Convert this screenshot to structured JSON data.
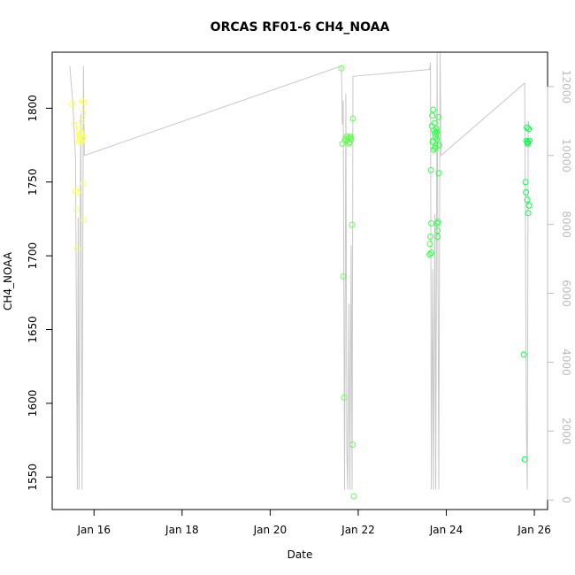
{
  "chart_data": {
    "type": "scatter",
    "title": "ORCAS RF01-6 CH4_NOAA",
    "xlabel": "Date",
    "ylabel": "CH4_NOAA",
    "x_ticks": [
      {
        "value": 16,
        "label": "Jan 16"
      },
      {
        "value": 18,
        "label": "Jan 18"
      },
      {
        "value": 20,
        "label": "Jan 20"
      },
      {
        "value": 22,
        "label": "Jan 22"
      },
      {
        "value": 24,
        "label": "Jan 24"
      },
      {
        "value": 26,
        "label": "Jan 26"
      }
    ],
    "xlim": [
      15.05,
      26.3
    ],
    "ylim": [
      1528,
      1838
    ],
    "y_ticks": [
      1550,
      1600,
      1650,
      1700,
      1750,
      1800
    ],
    "y2lim": [
      -280,
      13000
    ],
    "y2_ticks": [
      0,
      2000,
      4000,
      6000,
      8000,
      10000,
      12000
    ],
    "grid": false,
    "background_series": {
      "name": "",
      "color": "#c8c8c8",
      "points": [
        [
          15.45,
          12600
        ],
        [
          15.52,
          11500
        ],
        [
          15.58,
          9900
        ],
        [
          15.62,
          300
        ],
        [
          15.64,
          8200
        ],
        [
          15.66,
          300
        ],
        [
          15.68,
          7200
        ],
        [
          15.7,
          11200
        ],
        [
          15.73,
          300
        ],
        [
          15.76,
          12600
        ],
        [
          15.78,
          10000
        ],
        [
          21.62,
          12600
        ],
        [
          21.64,
          10900
        ],
        [
          21.66,
          11600
        ],
        [
          21.69,
          300
        ],
        [
          21.72,
          11800
        ],
        [
          21.74,
          1500
        ],
        [
          21.76,
          300
        ],
        [
          21.79,
          5700
        ],
        [
          21.81,
          300
        ],
        [
          21.84,
          7400
        ],
        [
          21.86,
          300
        ],
        [
          21.88,
          12300
        ],
        [
          23.62,
          12500
        ],
        [
          23.64,
          12700
        ],
        [
          23.66,
          300
        ],
        [
          23.69,
          6700
        ],
        [
          23.71,
          300
        ],
        [
          23.74,
          8300
        ],
        [
          23.76,
          300
        ],
        [
          23.79,
          13000
        ],
        [
          23.83,
          300
        ],
        [
          23.86,
          13000
        ],
        [
          23.88,
          10000
        ],
        [
          25.78,
          12100
        ],
        [
          25.82,
          2000
        ],
        [
          25.84,
          300
        ],
        [
          25.86,
          11000
        ],
        [
          25.88,
          10900
        ]
      ]
    },
    "series": [
      {
        "name": "",
        "color_start": "#ffff66",
        "color_end": "#00ff44",
        "points": [
          [
            15.5,
            1803
          ],
          [
            15.55,
            1789
          ],
          [
            15.58,
            1744
          ],
          [
            15.6,
            1731
          ],
          [
            15.62,
            1705
          ],
          [
            15.63,
            1743
          ],
          [
            15.65,
            1782
          ],
          [
            15.66,
            1786
          ],
          [
            15.67,
            1779
          ],
          [
            15.68,
            1781
          ],
          [
            15.69,
            1778
          ],
          [
            15.7,
            1784
          ],
          [
            15.71,
            1777
          ],
          [
            15.72,
            1791
          ],
          [
            15.73,
            1779
          ],
          [
            15.74,
            1805
          ],
          [
            15.75,
            1780
          ],
          [
            15.76,
            1749
          ],
          [
            15.77,
            1724
          ],
          [
            15.78,
            1804
          ],
          [
            15.66,
            1777
          ],
          [
            15.71,
            1782
          ],
          [
            15.76,
            1797
          ],
          [
            21.62,
            1827
          ],
          [
            21.64,
            1776
          ],
          [
            21.66,
            1686
          ],
          [
            21.68,
            1604
          ],
          [
            21.7,
            1779
          ],
          [
            21.72,
            1778
          ],
          [
            21.74,
            1781
          ],
          [
            21.76,
            1778
          ],
          [
            21.78,
            1780
          ],
          [
            21.8,
            1777
          ],
          [
            21.82,
            1781
          ],
          [
            21.84,
            1779
          ],
          [
            21.86,
            1721
          ],
          [
            21.87,
            1572
          ],
          [
            21.88,
            1793
          ],
          [
            21.9,
            1537
          ],
          [
            21.79,
            1776
          ],
          [
            21.83,
            1780
          ],
          [
            23.62,
            1701
          ],
          [
            23.63,
            1708
          ],
          [
            23.64,
            1713
          ],
          [
            23.65,
            1758
          ],
          [
            23.66,
            1722
          ],
          [
            23.67,
            1788
          ],
          [
            23.68,
            1795
          ],
          [
            23.69,
            1777
          ],
          [
            23.7,
            1799
          ],
          [
            23.71,
            1772
          ],
          [
            23.72,
            1785
          ],
          [
            23.73,
            1790
          ],
          [
            23.74,
            1783
          ],
          [
            23.75,
            1774
          ],
          [
            23.76,
            1781
          ],
          [
            23.77,
            1786
          ],
          [
            23.78,
            1779
          ],
          [
            23.79,
            1722
          ],
          [
            23.8,
            1717
          ],
          [
            23.81,
            1723
          ],
          [
            23.82,
            1794
          ],
          [
            23.83,
            1756
          ],
          [
            23.84,
            1775
          ],
          [
            23.66,
            1702
          ],
          [
            23.7,
            1778
          ],
          [
            23.74,
            1773
          ],
          [
            23.78,
            1784
          ],
          [
            23.8,
            1713
          ],
          [
            25.76,
            1633
          ],
          [
            25.78,
            1562
          ],
          [
            25.8,
            1750
          ],
          [
            25.81,
            1743
          ],
          [
            25.82,
            1778
          ],
          [
            25.83,
            1787
          ],
          [
            25.84,
            1738
          ],
          [
            25.85,
            1776
          ],
          [
            25.86,
            1729
          ],
          [
            25.87,
            1786
          ],
          [
            25.88,
            1734
          ],
          [
            25.89,
            1778
          ],
          [
            25.85,
            1777
          ]
        ]
      }
    ]
  }
}
